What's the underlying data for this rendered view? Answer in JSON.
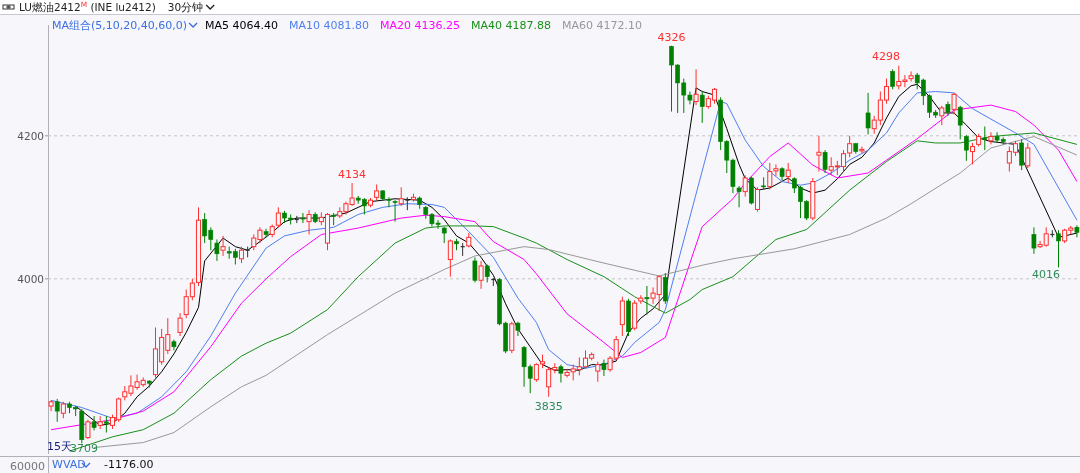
{
  "chart_data": {
    "type": "candlestick",
    "title": "LU燃油2412$^{M}$ (INE lu2412)",
    "subtitle": "30分钟",
    "legend_title": "MA组合(5,10,20,40,60,0)",
    "categories": [
      null,
      null,
      null,
      null,
      null,
      null,
      null,
      null,
      null,
      null,
      null,
      null,
      null,
      null,
      null,
      null,
      null,
      null,
      null,
      null,
      null,
      null,
      null,
      null,
      null,
      null,
      null,
      null,
      null,
      null,
      null,
      null,
      null,
      null,
      null,
      null,
      null,
      null,
      null,
      null,
      null,
      null,
      null,
      null,
      null,
      null,
      null,
      null,
      null,
      null,
      null,
      null,
      null,
      null,
      null,
      null,
      null,
      null,
      null,
      null,
      null,
      null,
      null,
      null,
      null,
      null,
      null,
      null,
      null,
      null,
      null,
      null,
      null,
      null,
      null,
      null,
      null,
      null,
      null,
      null,
      null,
      null,
      null,
      null,
      null,
      null,
      null,
      null,
      null,
      null,
      null,
      null,
      null,
      null,
      null,
      null,
      null,
      null,
      null,
      null,
      null,
      null,
      null,
      null,
      null,
      null,
      null,
      null,
      null,
      null,
      null,
      null,
      null,
      null,
      null,
      null,
      null,
      null,
      null,
      null,
      null,
      null,
      null,
      null,
      null,
      null,
      null,
      null,
      null,
      null,
      null,
      null,
      null,
      null,
      null,
      null,
      null,
      null,
      null,
      null,
      null,
      null,
      null,
      null,
      null,
      null,
      null,
      null,
      null,
      null,
      null,
      null,
      null,
      null,
      null,
      null,
      null,
      null,
      null,
      null,
      null,
      null,
      null,
      null,
      null,
      null,
      null,
      null
    ],
    "ohlc": [
      [
        3822,
        3830,
        3815,
        3828
      ],
      [
        3828,
        3832,
        3800,
        3815
      ],
      [
        3812,
        3828,
        3805,
        3825
      ],
      [
        3825,
        3828,
        3812,
        3820
      ],
      [
        3820,
        3822,
        3808,
        3818
      ],
      [
        3815,
        3818,
        3770,
        3775
      ],
      [
        3778,
        3803,
        3776,
        3800
      ],
      [
        3800,
        3808,
        3788,
        3792
      ],
      [
        3795,
        3808,
        3790,
        3800
      ],
      [
        3800,
        3808,
        3785,
        3798
      ],
      [
        3795,
        3810,
        3790,
        3806
      ],
      [
        3803,
        3834,
        3800,
        3832
      ],
      [
        3835,
        3850,
        3830,
        3842
      ],
      [
        3840,
        3865,
        3836,
        3850
      ],
      [
        3848,
        3866,
        3845,
        3856
      ],
      [
        3852,
        3862,
        3849,
        3858
      ],
      [
        3857,
        3858,
        3848,
        3854
      ],
      [
        3866,
        3932,
        3862,
        3902
      ],
      [
        3884,
        3930,
        3880,
        3918
      ],
      [
        3900,
        3945,
        3895,
        3922
      ],
      [
        3912,
        3915,
        3900,
        3905
      ],
      [
        3925,
        3952,
        3920,
        3945
      ],
      [
        3950,
        3985,
        3945,
        3975
      ],
      [
        3975,
        4000,
        3970,
        3994
      ],
      [
        3995,
        4100,
        3990,
        4082
      ],
      [
        4083,
        4092,
        4050,
        4060
      ],
      [
        4068,
        4072,
        4040,
        4055
      ],
      [
        4050,
        4055,
        4025,
        4035
      ],
      [
        4040,
        4060,
        4032,
        4045
      ],
      [
        4038,
        4045,
        4028,
        4036
      ],
      [
        4038,
        4042,
        4020,
        4030
      ],
      [
        4028,
        4045,
        4022,
        4040
      ],
      [
        4040,
        4045,
        4030,
        4040
      ],
      [
        4045,
        4062,
        4040,
        4057
      ],
      [
        4055,
        4072,
        4050,
        4068
      ],
      [
        4066,
        4070,
        4058,
        4062
      ],
      [
        4062,
        4076,
        4058,
        4073
      ],
      [
        4075,
        4100,
        4072,
        4092
      ],
      [
        4092,
        4095,
        4078,
        4085
      ],
      [
        4085,
        4090,
        4076,
        4083
      ],
      [
        4083,
        4088,
        4078,
        4083
      ],
      [
        4085,
        4092,
        4078,
        4084
      ],
      [
        4080,
        4096,
        4062,
        4090
      ],
      [
        4090,
        4093,
        4078,
        4080
      ],
      [
        4080,
        4093,
        4075,
        4086
      ],
      [
        4050,
        4092,
        4040,
        4090
      ],
      [
        4089,
        4092,
        4075,
        4087
      ],
      [
        4088,
        4100,
        4085,
        4094
      ],
      [
        4094,
        4108,
        4090,
        4105
      ],
      [
        4104,
        4134,
        4102,
        4113
      ],
      [
        4113,
        4116,
        4105,
        4110
      ],
      [
        4111,
        4113,
        4090,
        4102
      ],
      [
        4103,
        4113,
        4100,
        4110
      ],
      [
        4114,
        4132,
        4110,
        4123
      ],
      [
        4123,
        4124,
        4110,
        4112
      ],
      [
        4111,
        4114,
        4100,
        4110
      ],
      [
        4108,
        4110,
        4080,
        4107
      ],
      [
        4105,
        4128,
        4102,
        4112
      ],
      [
        4110,
        4114,
        4096,
        4110
      ],
      [
        4111,
        4119,
        4108,
        4114
      ],
      [
        4113,
        4115,
        4098,
        4104
      ],
      [
        4100,
        4102,
        4084,
        4090
      ],
      [
        4090,
        4092,
        4073,
        4077
      ],
      [
        4078,
        4082,
        4070,
        4076
      ],
      [
        4071,
        4073,
        4050,
        4064
      ],
      [
        4027,
        4055,
        4003,
        4053
      ],
      [
        4052,
        4056,
        4040,
        4049
      ],
      [
        4045,
        4050,
        4032,
        4045
      ],
      [
        4046,
        4064,
        4044,
        4058
      ],
      [
        4025,
        4030,
        3995,
        3998
      ],
      [
        3998,
        4025,
        3986,
        4018
      ],
      [
        4018,
        4020,
        3995,
        4003
      ],
      [
        3999,
        4001,
        3990,
        3999
      ],
      [
        3999,
        4001,
        3935,
        3937
      ],
      [
        3938,
        3940,
        3896,
        3899
      ],
      [
        3900,
        3940,
        3896,
        3937
      ],
      [
        3938,
        3940,
        3920,
        3928
      ],
      [
        3904,
        3906,
        3849,
        3877
      ],
      [
        3877,
        3880,
        3840,
        3861
      ],
      [
        3859,
        3882,
        3856,
        3880
      ],
      [
        3881,
        3894,
        3875,
        3884
      ],
      [
        3849,
        3876,
        3835,
        3873
      ],
      [
        3873,
        3882,
        3868,
        3876
      ],
      [
        3877,
        3880,
        3855,
        3868
      ],
      [
        3865,
        3874,
        3862,
        3869
      ],
      [
        3870,
        3880,
        3858,
        3874
      ],
      [
        3873,
        3890,
        3865,
        3877
      ],
      [
        3877,
        3900,
        3874,
        3889
      ],
      [
        3889,
        3897,
        3886,
        3894
      ],
      [
        3871,
        3884,
        3856,
        3880
      ],
      [
        3882,
        3887,
        3864,
        3873
      ],
      [
        3873,
        3892,
        3870,
        3889
      ],
      [
        3889,
        3920,
        3886,
        3915
      ],
      [
        3936,
        3975,
        3920,
        3969
      ],
      [
        3969,
        3972,
        3920,
        3926
      ],
      [
        3931,
        3970,
        3928,
        3966
      ],
      [
        3969,
        3977,
        3965,
        3973
      ],
      [
        3974,
        3990,
        3950,
        3972
      ],
      [
        3973,
        3988,
        3965,
        3980
      ],
      [
        3978,
        4005,
        3955,
        4003
      ],
      [
        4002,
        4008,
        3965,
        3969
      ],
      [
        4325,
        4326,
        4234,
        4299
      ],
      [
        4299,
        4300,
        4232,
        4274
      ],
      [
        4274,
        4280,
        4232,
        4257
      ],
      [
        4257,
        4262,
        4244,
        4250
      ],
      [
        4248,
        4293,
        4243,
        4258
      ],
      [
        4257,
        4262,
        4218,
        4241
      ],
      [
        4241,
        4256,
        4238,
        4252
      ],
      [
        4250,
        4267,
        4245,
        4265
      ],
      [
        4250,
        4254,
        4180,
        4192
      ],
      [
        4192,
        4194,
        4148,
        4166
      ],
      [
        4166,
        4168,
        4120,
        4129
      ],
      [
        4127,
        4130,
        4100,
        4122
      ],
      [
        4122,
        4145,
        4115,
        4141
      ],
      [
        4141,
        4143,
        4104,
        4106
      ],
      [
        4097,
        4128,
        4094,
        4125
      ],
      [
        4130,
        4142,
        4125,
        4129
      ],
      [
        4129,
        4162,
        4125,
        4150
      ],
      [
        4151,
        4160,
        4144,
        4154
      ],
      [
        4154,
        4156,
        4138,
        4143
      ],
      [
        4143,
        4162,
        4134,
        4152
      ],
      [
        4140,
        4142,
        4120,
        4127
      ],
      [
        4128,
        4130,
        4085,
        4108
      ],
      [
        4108,
        4110,
        4082,
        4085
      ],
      [
        4085,
        4141,
        4082,
        4136
      ],
      [
        4173,
        4200,
        4150,
        4177
      ],
      [
        4177,
        4180,
        4148,
        4153
      ],
      [
        4152,
        4170,
        4145,
        4157
      ],
      [
        4157,
        4165,
        4145,
        4158
      ],
      [
        4157,
        4180,
        4150,
        4175
      ],
      [
        4176,
        4200,
        4170,
        4189
      ],
      [
        4189,
        4190,
        4175,
        4178
      ],
      [
        4179,
        4185,
        4176,
        4181
      ],
      [
        4232,
        4260,
        4202,
        4211
      ],
      [
        4210,
        4228,
        4203,
        4222
      ],
      [
        4222,
        4262,
        4215,
        4250
      ],
      [
        4250,
        4280,
        4245,
        4269
      ],
      [
        4290,
        4293,
        4265,
        4269
      ],
      [
        4270,
        4298,
        4265,
        4276
      ],
      [
        4276,
        4285,
        4268,
        4278
      ],
      [
        4280,
        4290,
        4276,
        4284
      ],
      [
        4285,
        4288,
        4265,
        4274
      ],
      [
        4278,
        4280,
        4243,
        4256
      ],
      [
        4256,
        4258,
        4225,
        4233
      ],
      [
        4233,
        4236,
        4225,
        4229
      ],
      [
        4228,
        4242,
        4215,
        4239
      ],
      [
        4244,
        4248,
        4228,
        4233
      ],
      [
        4237,
        4260,
        4230,
        4258
      ],
      [
        4240,
        4242,
        4195,
        4215
      ],
      [
        4199,
        4201,
        4165,
        4180
      ],
      [
        4178,
        4190,
        4160,
        4185
      ],
      [
        4188,
        4203,
        4185,
        4199
      ],
      [
        4197,
        4213,
        4180,
        4195
      ],
      [
        4193,
        4205,
        4188,
        4199
      ],
      [
        4199,
        4205,
        4190,
        4194
      ],
      [
        4195,
        4198,
        4188,
        4192
      ],
      [
        4162,
        4185,
        4150,
        4178
      ],
      [
        4177,
        4193,
        4172,
        4189
      ],
      [
        4190,
        4195,
        4152,
        4159
      ],
      [
        4158,
        4190,
        4155,
        4183
      ],
      [
        4062,
        4072,
        4035,
        4043
      ],
      [
        4045,
        4053,
        4043,
        4048
      ],
      [
        4047,
        4072,
        4045,
        4063
      ],
      [
        4062,
        4068,
        4058,
        4062
      ],
      [
        4063,
        4068,
        4016,
        4053
      ],
      [
        4053,
        4070,
        4050,
        4068
      ],
      [
        4068,
        4074,
        4062,
        4071
      ],
      [
        4072,
        4075,
        4058,
        4065
      ]
    ],
    "series": [
      {
        "name": "MA5 4064.40",
        "color": "#000000",
        "type": "line",
        "values": [
          null,
          null,
          null,
          null,
          3822,
          null,
          null,
          null,
          3795,
          null,
          3798,
          null,
          3812,
          null,
          3835,
          null,
          3850,
          null,
          3870,
          null,
          3895,
          null,
          3925,
          null,
          3960,
          4025,
          null,
          null,
          4057,
          null,
          4045,
          null,
          4040,
          null,
          4052,
          null,
          4065,
          null,
          4080,
          null,
          4085,
          null,
          null,
          null,
          4085,
          null,
          null,
          null,
          4092,
          null,
          null,
          null,
          4108,
          null,
          null,
          null,
          4112,
          null,
          null,
          null,
          4110,
          null,
          4100,
          null,
          4083,
          null,
          4060,
          null,
          4050,
          null,
          4030,
          null,
          4005,
          null,
          3965,
          null,
          3930,
          null,
          3905,
          null,
          3880,
          null,
          3872,
          null,
          3873,
          null,
          3872,
          null,
          3880,
          null,
          3880,
          null,
          3885,
          null,
          3925,
          null,
          3945,
          null,
          3958,
          null,
          3978,
          null,
          null,
          null,
          null,
          4267,
          4262,
          null,
          4257,
          null,
          4210,
          null,
          4160,
          4140,
          null,
          4124,
          null,
          4127,
          null,
          null,
          4141,
          null,
          4127,
          null,
          4120,
          null,
          4124,
          null,
          4140,
          null,
          4160,
          null,
          4170,
          null,
          4190,
          null,
          4225,
          null,
          4255,
          null,
          4270,
          4272,
          null,
          4255,
          null,
          4232,
          null,
          4232,
          null,
          4215,
          null,
          4197,
          null,
          4192,
          null,
          4190,
          null,
          4188,
          null,
          null,
          null,
          null,
          null,
          null,
          4058,
          4060,
          null,
          4064
        ]
      },
      {
        "name": "MA10 4081.80",
        "color": "#4f7fef",
        "type": "line",
        "values": [
          3830,
          null,
          null,
          null,
          null,
          3820,
          null,
          null,
          null,
          null,
          3805,
          null,
          null,
          null,
          3812,
          null,
          null,
          null,
          3835,
          null,
          null,
          null,
          3870,
          null,
          null,
          null,
          3920,
          null,
          null,
          null,
          3980,
          null,
          null,
          null,
          null,
          4043,
          null,
          null,
          4060,
          null,
          null,
          null,
          4068,
          null,
          null,
          null,
          4072,
          null,
          null,
          null,
          4090,
          null,
          null,
          null,
          4100,
          null,
          null,
          null,
          4105,
          null,
          null,
          null,
          4104,
          null,
          4100,
          null,
          null,
          null,
          4066,
          null,
          null,
          null,
          4030,
          null,
          null,
          null,
          3973,
          null,
          null,
          3939,
          null,
          3901,
          null,
          null,
          3880,
          null,
          null,
          3875,
          null,
          null,
          3880,
          null,
          null,
          3892,
          null,
          3911,
          null,
          null,
          null,
          3939,
          3957,
          null,
          null,
          null,
          null,
          null,
          null,
          null,
          null,
          4248,
          4245,
          null,
          null,
          4194,
          null,
          null,
          4157,
          null,
          null,
          4136,
          null,
          null,
          4131,
          null,
          4134,
          null,
          null,
          4148,
          null,
          null,
          4166,
          null,
          null,
          4180,
          null,
          null,
          4204,
          null,
          4232,
          null,
          null,
          4260,
          null,
          null,
          4262,
          null,
          null,
          4260,
          null,
          null,
          4238,
          null,
          null,
          null,
          null,
          null,
          null,
          4204,
          null,
          null,
          4188,
          null,
          null,
          null,
          null,
          null,
          null,
          4082
        ]
      },
      {
        "name": "MA20 4136.25",
        "color": "#ff00ff",
        "type": "line",
        "values": [
          3789,
          null,
          null,
          null,
          null,
          null,
          null,
          null,
          null,
          null,
          3803,
          null,
          null,
          null,
          null,
          3815,
          null,
          null,
          null,
          null,
          3842,
          null,
          null,
          null,
          null,
          null,
          3905,
          null,
          null,
          null,
          null,
          3966,
          null,
          null,
          null,
          4000,
          null,
          null,
          null,
          4031,
          null,
          null,
          null,
          null,
          4062,
          null,
          null,
          null,
          null,
          null,
          4071,
          null,
          null,
          null,
          null,
          null,
          null,
          4085,
          null,
          null,
          null,
          4089,
          null,
          null,
          4087,
          null,
          null,
          null,
          null,
          4080,
          null,
          null,
          4052,
          null,
          null,
          null,
          null,
          4027,
          null,
          4007,
          null,
          null,
          null,
          null,
          3951,
          null,
          null,
          null,
          null,
          null,
          3911,
          null,
          null,
          3890,
          null,
          null,
          3897,
          null,
          null,
          null,
          3918,
          null,
          null,
          null,
          4022,
          null,
          4073,
          null,
          null,
          null,
          null,
          4112,
          null,
          4134,
          null,
          null,
          null,
          4171,
          null,
          null,
          4190,
          null,
          null,
          null,
          4159,
          null,
          null,
          null,
          4141,
          null,
          null,
          null,
          null,
          4148,
          null,
          null,
          4166,
          null,
          null,
          null,
          null,
          4196,
          null,
          null,
          null,
          null,
          null,
          4236,
          null,
          null,
          null,
          null,
          null,
          4243,
          null,
          null,
          null,
          4234,
          null,
          null,
          4215,
          null,
          null,
          null,
          4180,
          null,
          null,
          4136
        ]
      },
      {
        "name": "MA40 4187.88",
        "color": "#1a8f1a",
        "type": "line",
        "values": [
          null,
          null,
          null,
          3759,
          null,
          null,
          null,
          null,
          null,
          null,
          3779,
          null,
          null,
          null,
          null,
          3789,
          null,
          null,
          null,
          null,
          3812,
          null,
          null,
          null,
          null,
          null,
          3859,
          null,
          null,
          null,
          null,
          3892,
          null,
          null,
          null,
          3910,
          null,
          null,
          null,
          3924,
          null,
          null,
          null,
          null,
          null,
          3957,
          null,
          null,
          null,
          null,
          4003,
          null,
          null,
          null,
          null,
          null,
          4050,
          null,
          null,
          null,
          null,
          4071,
          null,
          null,
          4074,
          null,
          null,
          null,
          null,
          4074,
          null,
          null,
          4073,
          null,
          null,
          null,
          null,
          4057,
          null,
          4050,
          null,
          null,
          null,
          null,
          4027,
          null,
          null,
          null,
          null,
          null,
          4003,
          null,
          null,
          null,
          null,
          3975,
          null,
          null,
          null,
          null,
          3952,
          null,
          null,
          null,
          3971,
          null,
          3985,
          null,
          null,
          null,
          null,
          4003,
          null,
          null,
          null,
          null,
          null,
          null,
          4055,
          null,
          null,
          null,
          null,
          4069,
          null,
          null,
          null,
          null,
          null,
          null,
          4124,
          null,
          null,
          null,
          null,
          null,
          4164,
          null,
          null,
          null,
          null,
          4193,
          null,
          null,
          4190,
          null,
          null,
          null,
          4190,
          null,
          null,
          null,
          null,
          4199,
          null,
          null,
          null,
          null,
          null,
          null,
          4204,
          null,
          null,
          null,
          null,
          null,
          null,
          4188
        ]
      },
      {
        "name": "MA60 4172.10",
        "color": "#999999",
        "type": "line",
        "values": [
          null,
          null,
          null,
          null,
          null,
          null,
          null,
          3764,
          null,
          null,
          null,
          null,
          null,
          null,
          null,
          3771,
          null,
          null,
          null,
          null,
          3785,
          null,
          null,
          null,
          null,
          null,
          3821,
          null,
          null,
          null,
          null,
          3849,
          null,
          null,
          null,
          3865,
          null,
          null,
          null,
          null,
          null,
          null,
          null,
          null,
          null,
          3922,
          null,
          null,
          null,
          null,
          null,
          null,
          null,
          null,
          null,
          null,
          3980,
          null,
          null,
          null,
          null,
          null,
          null,
          null,
          4013,
          null,
          null,
          null,
          null,
          4032,
          null,
          null,
          null,
          null,
          null,
          null,
          null,
          4045,
          null,
          null,
          null,
          4041,
          null,
          null,
          null,
          null,
          null,
          null,
          null,
          null,
          4022,
          null,
          null,
          null,
          null,
          null,
          null,
          null,
          null,
          4004,
          null,
          null,
          null,
          null,
          null,
          null,
          4019,
          null,
          null,
          null,
          null,
          4028,
          null,
          null,
          null,
          null,
          null,
          null,
          null,
          null,
          null,
          4042,
          null,
          null,
          null,
          null,
          null,
          null,
          null,
          null,
          4062,
          null,
          null,
          null,
          null,
          null,
          4085,
          null,
          null,
          null,
          4105,
          null,
          null,
          null,
          null,
          4132,
          null,
          null,
          4148,
          null,
          null,
          null,
          null,
          4183,
          null,
          null,
          null,
          null,
          null,
          null,
          4199,
          null,
          null,
          null,
          null,
          null,
          null,
          4173
        ]
      }
    ],
    "ylim": [
      3755,
      4355
    ],
    "yticks": [
      4000,
      4200
    ],
    "grid": "y",
    "legend": "top left",
    "annotations": [
      {
        "text": "4134",
        "y": 4134
      },
      {
        "text": "4326",
        "y": 4326
      },
      {
        "text": "3835",
        "y": 3835
      },
      "4298",
      "4016",
      "3709",
      "15天",
      "WVAD",
      "-1176.00",
      "60000"
    ]
  }
}
